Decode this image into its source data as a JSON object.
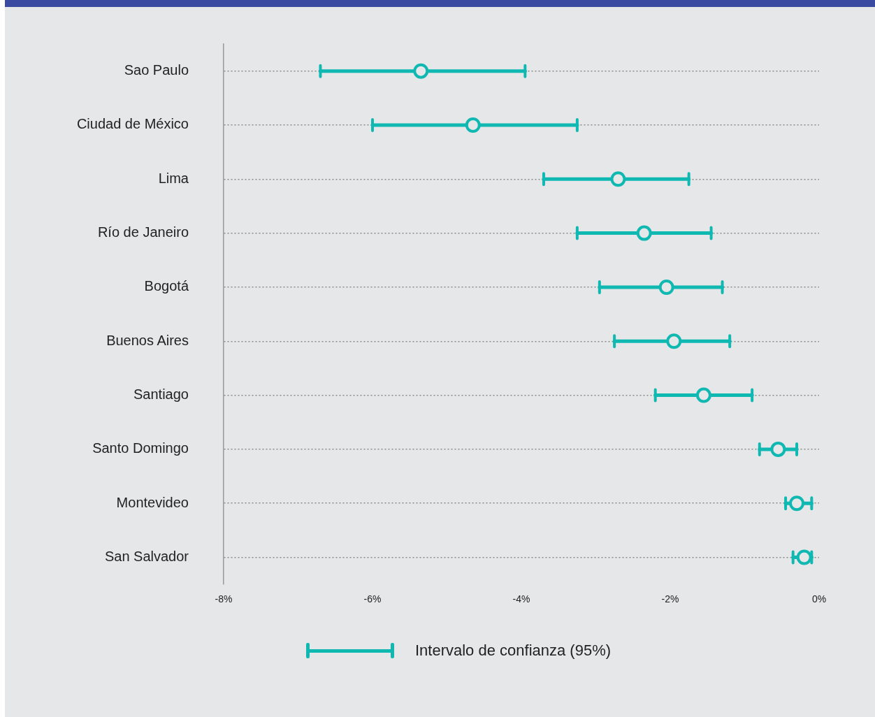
{
  "chart_data": {
    "type": "scatter",
    "orientation": "horizontal",
    "categories": [
      "Sao Paulo",
      "Ciudad de México",
      "Lima",
      "Río de Janeiro",
      "Bogotá",
      "Buenos Aires",
      "Santiago",
      "Santo Domingo",
      "Montevideo",
      "San Salvador"
    ],
    "series": [
      {
        "name": "Intervalo de confianza (95%)",
        "color": "#10b8b2",
        "values": [
          -5.35,
          -4.65,
          -2.7,
          -2.35,
          -2.05,
          -1.95,
          -1.55,
          -0.55,
          -0.3,
          -0.2
        ],
        "errors": [
          [
            -6.7,
            -3.95
          ],
          [
            -6,
            -3.25
          ],
          [
            -3.7,
            -1.75
          ],
          [
            -3.25,
            -1.45
          ],
          [
            -2.95,
            -1.3
          ],
          [
            -2.75,
            -1.2
          ],
          [
            -2.2,
            -0.9
          ],
          [
            -0.8,
            -0.3
          ],
          [
            -0.45,
            -0.1
          ],
          [
            -0.35,
            -0.1
          ]
        ]
      }
    ],
    "xlim": [
      -8,
      0
    ],
    "xticks": [
      {
        "value": -8,
        "label": "-8%"
      },
      {
        "value": -6,
        "label": "-6%"
      },
      {
        "value": -4,
        "label": "-4%"
      },
      {
        "value": -2,
        "label": "-2%"
      },
      {
        "value": 0,
        "label": "0%"
      }
    ],
    "grid": "y",
    "legend": "bottom",
    "marker": "circle"
  }
}
